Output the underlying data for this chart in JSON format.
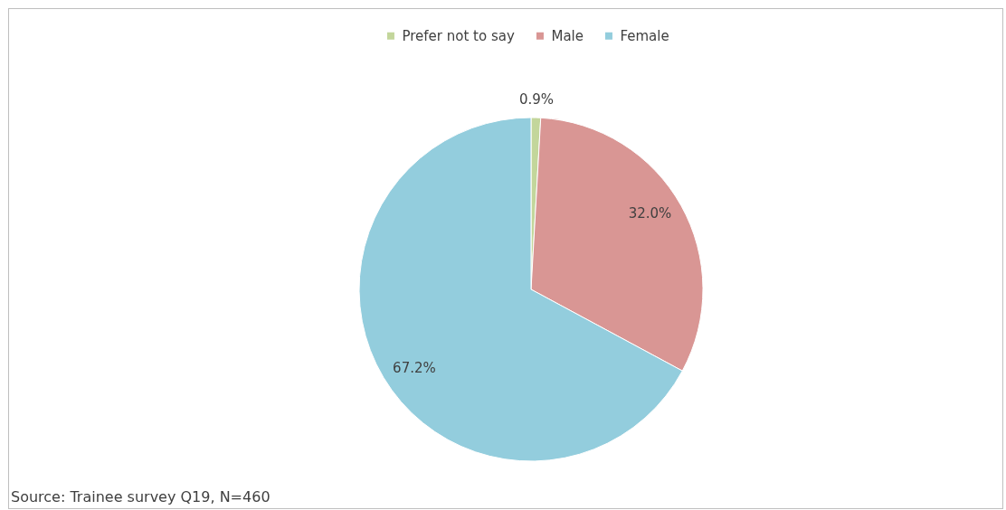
{
  "chart_data": {
    "type": "pie",
    "categories": [
      "Prefer not to say",
      "Male",
      "Female"
    ],
    "values": [
      0.9,
      32.0,
      67.2
    ],
    "colors": [
      "#c3d69b",
      "#d99694",
      "#93cddd"
    ],
    "value_labels": [
      "0.9%",
      "32.0%",
      "67.2%"
    ],
    "legend": "top",
    "annotations": [
      "Source: Trainee survey Q19, N=460"
    ]
  }
}
